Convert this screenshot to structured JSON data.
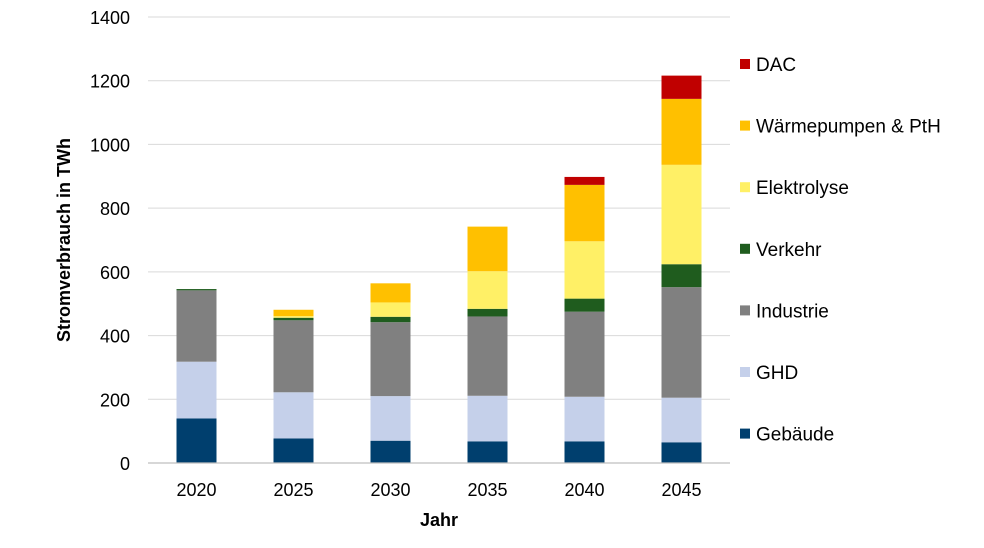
{
  "chart_data": {
    "type": "bar",
    "stacked": true,
    "categories": [
      "2020",
      "2025",
      "2030",
      "2035",
      "2040",
      "2045"
    ],
    "xlabel": "Jahr",
    "ylabel": "Stromverbrauch in TWh",
    "ylim": [
      0,
      1400
    ],
    "yticks": [
      "0",
      "200",
      "400",
      "600",
      "800",
      "1000",
      "1200",
      "1400"
    ],
    "grid": "horizontal",
    "legend_position": "right",
    "series": [
      {
        "name": "Gebäude",
        "color": "#003F6E",
        "values": [
          140,
          77,
          70,
          68,
          68,
          65
        ]
      },
      {
        "name": "GHD",
        "color": "#C5D0EA",
        "values": [
          178,
          145,
          140,
          143,
          140,
          140
        ]
      },
      {
        "name": "Industrie",
        "color": "#808080",
        "values": [
          224,
          226,
          232,
          249,
          267,
          347
        ]
      },
      {
        "name": "Verkehr",
        "color": "#1F5C1E",
        "values": [
          4,
          8,
          17,
          24,
          41,
          72
        ]
      },
      {
        "name": "Elektrolyse",
        "color": "#FFF066",
        "values": [
          0,
          5,
          45,
          118,
          180,
          312
        ]
      },
      {
        "name": "Wärmepumpen & PtH",
        "color": "#FFC000",
        "values": [
          0,
          20,
          60,
          140,
          177,
          207
        ]
      },
      {
        "name": "DAC",
        "color": "#C00000",
        "values": [
          0,
          0,
          0,
          0,
          25,
          73
        ]
      }
    ]
  }
}
